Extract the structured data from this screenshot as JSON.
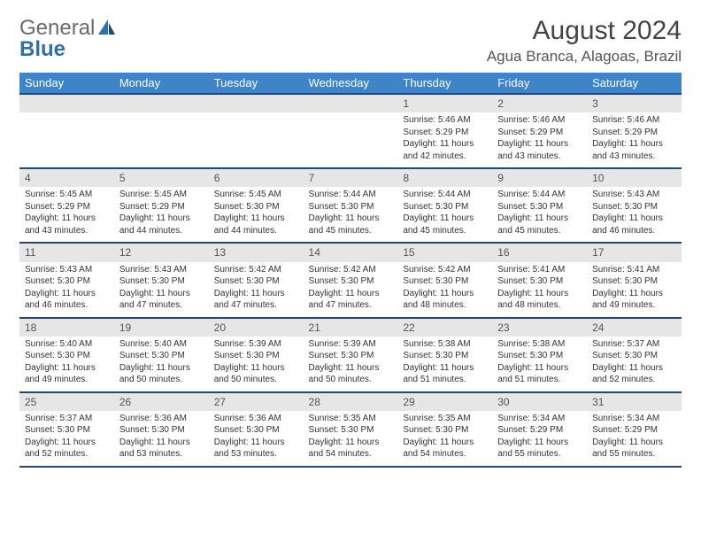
{
  "logo": {
    "text1": "General",
    "text2": "Blue"
  },
  "title": "August 2024",
  "location": "Agua Branca, Alagoas, Brazil",
  "colors": {
    "header_bg": "#3d85c6",
    "header_border": "#1c4a7a",
    "daynum_bg": "#e6e6e6",
    "logo_blue": "#2f6fab"
  },
  "dayHeaders": [
    "Sunday",
    "Monday",
    "Tuesday",
    "Wednesday",
    "Thursday",
    "Friday",
    "Saturday"
  ],
  "weeks": [
    [
      null,
      null,
      null,
      null,
      {
        "n": "1",
        "sr": "5:46 AM",
        "ss": "5:29 PM",
        "dl": "11 hours and 42 minutes."
      },
      {
        "n": "2",
        "sr": "5:46 AM",
        "ss": "5:29 PM",
        "dl": "11 hours and 43 minutes."
      },
      {
        "n": "3",
        "sr": "5:46 AM",
        "ss": "5:29 PM",
        "dl": "11 hours and 43 minutes."
      }
    ],
    [
      {
        "n": "4",
        "sr": "5:45 AM",
        "ss": "5:29 PM",
        "dl": "11 hours and 43 minutes."
      },
      {
        "n": "5",
        "sr": "5:45 AM",
        "ss": "5:29 PM",
        "dl": "11 hours and 44 minutes."
      },
      {
        "n": "6",
        "sr": "5:45 AM",
        "ss": "5:30 PM",
        "dl": "11 hours and 44 minutes."
      },
      {
        "n": "7",
        "sr": "5:44 AM",
        "ss": "5:30 PM",
        "dl": "11 hours and 45 minutes."
      },
      {
        "n": "8",
        "sr": "5:44 AM",
        "ss": "5:30 PM",
        "dl": "11 hours and 45 minutes."
      },
      {
        "n": "9",
        "sr": "5:44 AM",
        "ss": "5:30 PM",
        "dl": "11 hours and 45 minutes."
      },
      {
        "n": "10",
        "sr": "5:43 AM",
        "ss": "5:30 PM",
        "dl": "11 hours and 46 minutes."
      }
    ],
    [
      {
        "n": "11",
        "sr": "5:43 AM",
        "ss": "5:30 PM",
        "dl": "11 hours and 46 minutes."
      },
      {
        "n": "12",
        "sr": "5:43 AM",
        "ss": "5:30 PM",
        "dl": "11 hours and 47 minutes."
      },
      {
        "n": "13",
        "sr": "5:42 AM",
        "ss": "5:30 PM",
        "dl": "11 hours and 47 minutes."
      },
      {
        "n": "14",
        "sr": "5:42 AM",
        "ss": "5:30 PM",
        "dl": "11 hours and 47 minutes."
      },
      {
        "n": "15",
        "sr": "5:42 AM",
        "ss": "5:30 PM",
        "dl": "11 hours and 48 minutes."
      },
      {
        "n": "16",
        "sr": "5:41 AM",
        "ss": "5:30 PM",
        "dl": "11 hours and 48 minutes."
      },
      {
        "n": "17",
        "sr": "5:41 AM",
        "ss": "5:30 PM",
        "dl": "11 hours and 49 minutes."
      }
    ],
    [
      {
        "n": "18",
        "sr": "5:40 AM",
        "ss": "5:30 PM",
        "dl": "11 hours and 49 minutes."
      },
      {
        "n": "19",
        "sr": "5:40 AM",
        "ss": "5:30 PM",
        "dl": "11 hours and 50 minutes."
      },
      {
        "n": "20",
        "sr": "5:39 AM",
        "ss": "5:30 PM",
        "dl": "11 hours and 50 minutes."
      },
      {
        "n": "21",
        "sr": "5:39 AM",
        "ss": "5:30 PM",
        "dl": "11 hours and 50 minutes."
      },
      {
        "n": "22",
        "sr": "5:38 AM",
        "ss": "5:30 PM",
        "dl": "11 hours and 51 minutes."
      },
      {
        "n": "23",
        "sr": "5:38 AM",
        "ss": "5:30 PM",
        "dl": "11 hours and 51 minutes."
      },
      {
        "n": "24",
        "sr": "5:37 AM",
        "ss": "5:30 PM",
        "dl": "11 hours and 52 minutes."
      }
    ],
    [
      {
        "n": "25",
        "sr": "5:37 AM",
        "ss": "5:30 PM",
        "dl": "11 hours and 52 minutes."
      },
      {
        "n": "26",
        "sr": "5:36 AM",
        "ss": "5:30 PM",
        "dl": "11 hours and 53 minutes."
      },
      {
        "n": "27",
        "sr": "5:36 AM",
        "ss": "5:30 PM",
        "dl": "11 hours and 53 minutes."
      },
      {
        "n": "28",
        "sr": "5:35 AM",
        "ss": "5:30 PM",
        "dl": "11 hours and 54 minutes."
      },
      {
        "n": "29",
        "sr": "5:35 AM",
        "ss": "5:30 PM",
        "dl": "11 hours and 54 minutes."
      },
      {
        "n": "30",
        "sr": "5:34 AM",
        "ss": "5:29 PM",
        "dl": "11 hours and 55 minutes."
      },
      {
        "n": "31",
        "sr": "5:34 AM",
        "ss": "5:29 PM",
        "dl": "11 hours and 55 minutes."
      }
    ]
  ],
  "labels": {
    "sunrise": "Sunrise: ",
    "sunset": "Sunset: ",
    "daylight": "Daylight: "
  }
}
